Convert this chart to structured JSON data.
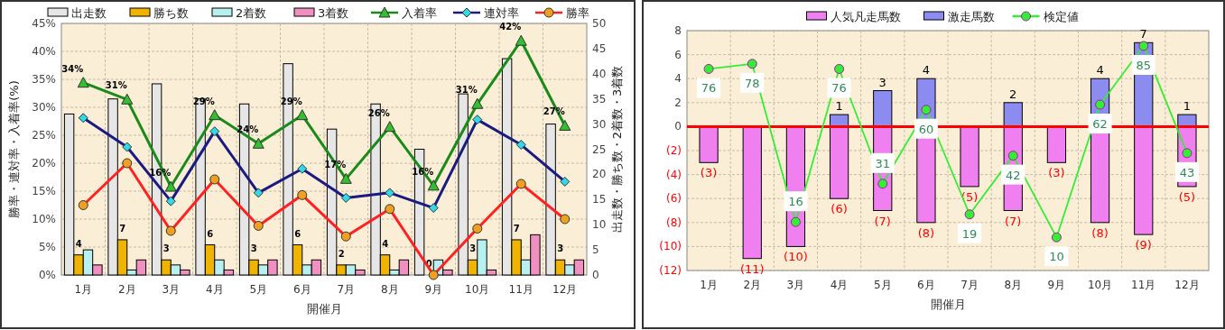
{
  "chart_data": [
    {
      "type": "bar",
      "xlabel": "開催月",
      "ylabel": "勝率・連対率・入着率(%)",
      "y2label": "出走数・勝ち数・2着数・3着数",
      "categories": [
        "1月",
        "2月",
        "3月",
        "4月",
        "5月",
        "6月",
        "7月",
        "8月",
        "9月",
        "10月",
        "11月",
        "12月"
      ],
      "series": [
        {
          "name": "出走数",
          "color": "#e6e6e6",
          "axis": "y2",
          "values": [
            32,
            35,
            38,
            35,
            34,
            42,
            29,
            34,
            25,
            36,
            43,
            30
          ]
        },
        {
          "name": "勝ち数",
          "color": "#f0b400",
          "axis": "y2",
          "values": [
            4,
            7,
            3,
            6,
            3,
            6,
            2,
            4,
            0,
            3,
            7,
            3
          ],
          "value_labels": [
            "4",
            "7",
            "3",
            "6",
            "3",
            "6",
            "2",
            "4",
            "0",
            "3",
            "7",
            "3"
          ]
        },
        {
          "name": "2着数",
          "color": "#b8f0f0",
          "axis": "y2",
          "values": [
            5,
            1,
            2,
            3,
            2,
            2,
            2,
            1,
            3,
            7,
            3,
            2
          ]
        },
        {
          "name": "3着数",
          "color": "#f090c0",
          "axis": "y2",
          "values": [
            2,
            3,
            1,
            1,
            3,
            3,
            1,
            3,
            1,
            1,
            8,
            3
          ]
        },
        {
          "name": "入着率",
          "type": "line",
          "color": "#1a8a1a",
          "marker": "triangle",
          "values": [
            34.4,
            31.4,
            15.8,
            28.6,
            23.5,
            28.6,
            17.2,
            26.5,
            16.0,
            30.6,
            41.9,
            26.7
          ],
          "value_labels": [
            "34%",
            "31%",
            "16%",
            "29%",
            "24%",
            "29%",
            "17%",
            "26%",
            "16%",
            "31%",
            "42%",
            "27%"
          ]
        },
        {
          "name": "連対率",
          "type": "line",
          "color": "#1a1a80",
          "marker": "diamond",
          "values": [
            28.1,
            22.9,
            13.2,
            25.7,
            14.7,
            19.0,
            13.8,
            14.7,
            12.0,
            27.8,
            23.3,
            16.7
          ]
        },
        {
          "name": "勝率",
          "type": "line",
          "color": "#ff2020",
          "marker": "circle",
          "values": [
            12.5,
            20.0,
            7.9,
            17.1,
            8.8,
            14.3,
            6.9,
            11.8,
            0,
            8.3,
            16.3,
            10.0
          ]
        }
      ],
      "ylim": [
        0,
        45
      ],
      "yticks": [
        {
          "value": 0,
          "label": "0%"
        },
        {
          "value": 5,
          "label": "5%"
        },
        {
          "value": 10,
          "label": "10%"
        },
        {
          "value": 15,
          "label": "15%"
        },
        {
          "value": 20,
          "label": "20%"
        },
        {
          "value": 25,
          "label": "25%"
        },
        {
          "value": 30,
          "label": "30%"
        },
        {
          "value": 35,
          "label": "35%"
        },
        {
          "value": 40,
          "label": "40%"
        },
        {
          "value": 45,
          "label": "45%"
        }
      ],
      "y2lim": [
        0,
        50
      ],
      "y2ticks": [
        0,
        5,
        10,
        15,
        20,
        25,
        30,
        35,
        40,
        45,
        50
      ],
      "grid": true,
      "legend": "top"
    },
    {
      "type": "bar",
      "xlabel": "開催月",
      "stacked": true,
      "categories": [
        "1月",
        "2月",
        "3月",
        "4月",
        "5月",
        "6月",
        "7月",
        "8月",
        "9月",
        "10月",
        "11月",
        "12月"
      ],
      "series": [
        {
          "name": "人気凡走馬数",
          "color": "#f080f0",
          "values": [
            -3,
            -11,
            -10,
            -6,
            -7,
            -8,
            -5,
            -7,
            -3,
            -8,
            -9,
            -5
          ],
          "value_labels": [
            "(3)",
            "(11)",
            "(10)",
            "(6)",
            "(7)",
            "(8)",
            "(5)",
            "(7)",
            "(3)",
            "(8)",
            "(9)",
            "(5)"
          ]
        },
        {
          "name": "激走馬数",
          "color": "#8c8cf0",
          "values": [
            null,
            null,
            null,
            1,
            3,
            4,
            null,
            2,
            null,
            4,
            7,
            1
          ],
          "value_labels": [
            null,
            null,
            null,
            "1",
            "3",
            "4",
            null,
            "2",
            null,
            "4",
            "7",
            "1"
          ]
        },
        {
          "name": "検定値",
          "type": "line",
          "color": "#33ee33",
          "marker": "circle",
          "axis": "y2",
          "values": [
            76,
            78,
            16,
            76,
            31,
            60,
            19,
            42,
            10,
            62,
            85,
            43
          ],
          "value_labels": [
            "76",
            "78",
            "16",
            "76",
            "31",
            "60",
            "19",
            "42",
            "10",
            "62",
            "85",
            "43"
          ]
        }
      ],
      "ylim": [
        -12,
        8
      ],
      "yticks": [
        {
          "value": -12,
          "label": "(12)"
        },
        {
          "value": -10,
          "label": "(10)"
        },
        {
          "value": -8,
          "label": "(8)"
        },
        {
          "value": -6,
          "label": "(6)"
        },
        {
          "value": -4,
          "label": "(4)"
        },
        {
          "value": -2,
          "label": "(2)"
        },
        0,
        2,
        4,
        6,
        8
      ],
      "y2lim": [
        -3,
        91
      ],
      "ref_lines": [
        {
          "axis": "y",
          "value": 0,
          "color": "#ff0000"
        }
      ],
      "grid": true,
      "legend": "top"
    }
  ]
}
